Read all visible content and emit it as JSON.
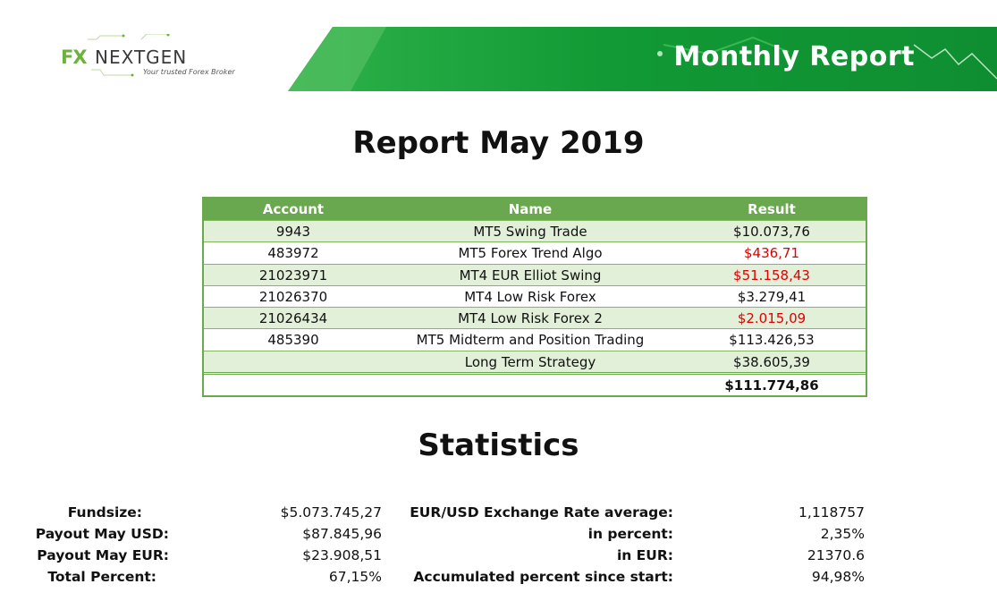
{
  "header": {
    "logo_mark": "FX",
    "logo_word": "NEXTGEN",
    "logo_tagline": "Your trusted Forex Broker",
    "banner_title": "Monthly Report"
  },
  "report_title": "Report May 2019",
  "table": {
    "headers": [
      "Account",
      "Name",
      "Result"
    ],
    "rows": [
      {
        "account": "9943",
        "name": "MT5 Swing Trade",
        "result": "$10.073,76",
        "negative": false
      },
      {
        "account": "483972",
        "name": "MT5 Forex Trend Algo",
        "result": "$436,71",
        "negative": true
      },
      {
        "account": "21023971",
        "name": "MT4 EUR Elliot Swing",
        "result": "$51.158,43",
        "negative": true
      },
      {
        "account": "21026370",
        "name": "MT4 Low Risk Forex",
        "result": "$3.279,41",
        "negative": false
      },
      {
        "account": "21026434",
        "name": "MT4 Low Risk Forex 2",
        "result": "$2.015,09",
        "negative": true
      },
      {
        "account": "485390",
        "name": "MT5 Midterm and Position Trading",
        "result": "$113.426,53",
        "negative": false
      },
      {
        "account": "",
        "name": "Long Term Strategy",
        "result": "$38.605,39",
        "negative": false
      }
    ],
    "total": "$111.774,86"
  },
  "statistics_title": "Statistics",
  "stats_left": [
    {
      "label": "Fundsize:",
      "value": "$5.073.745,27"
    },
    {
      "label": "Payout May USD:",
      "value": "$87.845,96"
    },
    {
      "label": "Payout May EUR:",
      "value": "$23.908,51"
    },
    {
      "label": "Total Percent:",
      "value": "67,15%"
    }
  ],
  "stats_right": [
    {
      "label": "EUR/USD Exchange Rate average:",
      "value": "1,118757"
    },
    {
      "label": "in percent:",
      "value": "2,35%"
    },
    {
      "label": "in EUR:",
      "value": "21370.6"
    },
    {
      "label": "Accumulated percent since start:",
      "value": "94,98%"
    }
  ],
  "colors": {
    "brand_green": "#6aa84f",
    "banner_green": "#1a9a3a",
    "row_alt": "#e2efd9",
    "negative": "#e00000"
  }
}
